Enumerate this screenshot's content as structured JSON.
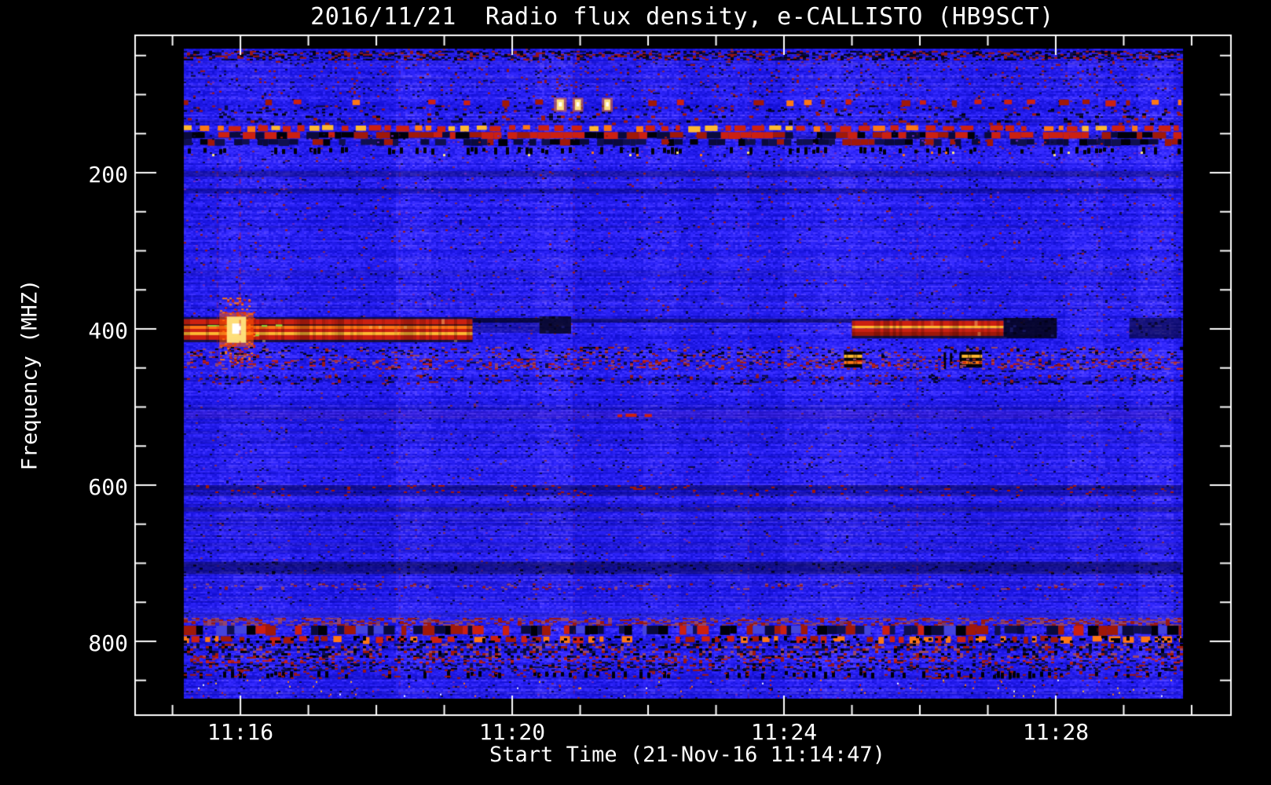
{
  "chart_data": {
    "type": "heatmap",
    "subtype": "radio-spectrogram",
    "title": "2016/11/21  Radio flux density, e-CALLISTO (HB9SCT)",
    "xlabel": "Start Time (21-Nov-16 11:14:47)",
    "ylabel": "Frequency (MHZ)",
    "x_axis": {
      "unit": "time-of-day",
      "start_time": "11:14:47",
      "data_left_offset_sec": 23,
      "data_right_offset_sec": 904,
      "minor_tick_interval_sec": 60,
      "first_minor_offset_sec": 13,
      "last_minor_offset_sec": 913,
      "major_ticks": [
        {
          "label": "11:16",
          "sec": 73
        },
        {
          "label": "11:20",
          "sec": 313
        },
        {
          "label": "11:24",
          "sec": 553
        },
        {
          "label": "11:28",
          "sec": 793
        }
      ]
    },
    "y_axis": {
      "unit": "MHz",
      "top_mhz": 41.2,
      "bottom_mhz": 873.4,
      "minor_step_mhz": 50,
      "minor_min_mhz": 50,
      "minor_max_mhz": 850,
      "major_ticks": [
        {
          "label": "200",
          "mhz": 200
        },
        {
          "label": "400",
          "mhz": 400
        },
        {
          "label": "600",
          "mhz": 600
        },
        {
          "label": "800",
          "mhz": 800
        }
      ]
    },
    "palette": {
      "frame": "#ffffff",
      "bg_blue": "#2620e2",
      "red": "#cc2010",
      "red2": "#a01808",
      "orange": "#ff7714",
      "bright": "#ffb830",
      "yellow": "#ffe680",
      "white": "#ffffff",
      "dark": "#0a0a3c",
      "black": "#000008",
      "navy": "#10104f",
      "navy2": "#1a1040",
      "purple": "#6a28c0",
      "mauve": "#9a4868",
      "green": "#8fd838",
      "blue2": "#4444dd"
    },
    "features": [
      {
        "kind": "speckle",
        "f": [
          44,
          56
        ],
        "d": 0.5,
        "colors": [
          "dark",
          "red2",
          "black"
        ],
        "cw": 4,
        "ch": 2
      },
      {
        "kind": "speckle",
        "f": [
          57,
          103
        ],
        "d": 0.045,
        "colors": [
          "red2",
          "dark"
        ],
        "cw": 3,
        "ch": 2
      },
      {
        "kind": "hdash",
        "f": [
          106,
          114
        ],
        "dash": [
          9,
          26
        ],
        "colors": [
          "red",
          "red2",
          "orange"
        ],
        "d": 0.75
      },
      {
        "kind": "speckle",
        "f": [
          114,
          123
        ],
        "d": 0.14,
        "colors": [
          "red2",
          "dark",
          "black"
        ],
        "cw": 4,
        "ch": 2
      },
      {
        "kind": "glow",
        "t": [
          352,
          359
        ],
        "f": [
          104,
          122
        ],
        "core": "yellow",
        "halo": "orange"
      },
      {
        "kind": "glow",
        "t": [
          368,
          374
        ],
        "f": [
          104,
          122
        ],
        "core": "yellow",
        "halo": "orange"
      },
      {
        "kind": "glow",
        "t": [
          394,
          400
        ],
        "f": [
          104,
          122
        ],
        "core": "yellow",
        "halo": "orange"
      },
      {
        "kind": "speckle",
        "f": [
          124,
          138
        ],
        "d": 0.12,
        "colors": [
          "black",
          "red2",
          "dark"
        ],
        "cw": 5,
        "ch": 3
      },
      {
        "kind": "hdash",
        "f": [
          139,
          147
        ],
        "dash": [
          11,
          7
        ],
        "colors": [
          "red",
          "red",
          "orange",
          "bright"
        ],
        "d": 0.95
      },
      {
        "kind": "blocks",
        "f": [
          148,
          157
        ],
        "bw": [
          7,
          18
        ],
        "colors": [
          "red",
          "black",
          "red",
          "dark",
          "red2"
        ],
        "skip": 0.15
      },
      {
        "kind": "blocks",
        "f": [
          157,
          166
        ],
        "bw": [
          6,
          14
        ],
        "colors": [
          "dark",
          "black",
          "navy",
          "red2",
          "dark",
          "navy"
        ],
        "skip": 0.3
      },
      {
        "kind": "vdashes",
        "f": [
          167,
          177
        ],
        "d": 0.3,
        "color": "black",
        "w": 4
      },
      {
        "kind": "dots",
        "f": [
          173,
          177
        ],
        "d": 0.02,
        "colors": [
          "yellow",
          "orange"
        ],
        "cw": 3,
        "ch": 3
      },
      {
        "kind": "stripe",
        "f": [
          198,
          205
        ],
        "color": "#000030",
        "alpha": 0.35
      },
      {
        "kind": "stripe",
        "f": [
          220,
          227
        ],
        "color": "#000030",
        "alpha": 0.25
      },
      {
        "kind": "speckle",
        "f": [
          150,
          380
        ],
        "d": 0.011,
        "colors": [
          "red2",
          "dark",
          "purple"
        ],
        "cw": 3,
        "ch": 2
      },
      {
        "kind": "stripes",
        "t": [
          23,
          278
        ],
        "jitter": 0.5,
        "list": [
          [
            385,
            387.5,
            "navy"
          ],
          [
            387.5,
            394,
            "red"
          ],
          [
            394,
            396,
            "#551515"
          ],
          [
            396,
            400,
            "orange"
          ],
          [
            400,
            404,
            "red"
          ],
          [
            404,
            408,
            "bright"
          ],
          [
            408,
            414,
            "red"
          ],
          [
            414,
            417,
            "navy2"
          ]
        ]
      },
      {
        "kind": "hdash",
        "t": [
          23,
          110
        ],
        "f": [
          394,
          396.5
        ],
        "dash": [
          10,
          12
        ],
        "colors": [
          "green"
        ],
        "d": 0.7
      },
      {
        "kind": "hdash",
        "t": [
          40,
          120
        ],
        "f": [
          407,
          409.5
        ],
        "dash": [
          8,
          14
        ],
        "colors": [
          "green"
        ],
        "d": 0.6
      },
      {
        "kind": "speckle",
        "t": [
          55,
          85
        ],
        "f": [
          360,
          445
        ],
        "d": 0.28,
        "colors": [
          "red",
          "orange"
        ],
        "cw": 3,
        "ch": 2
      },
      {
        "kind": "glow",
        "t": [
          60,
          79
        ],
        "f": [
          379,
          423
        ],
        "core": "yellow",
        "halo": "#ff5500"
      },
      {
        "kind": "stripe",
        "t": [
          278,
          337
        ],
        "f": [
          386,
          392
        ],
        "color": "#00001c",
        "alpha": 0.8
      },
      {
        "kind": "stripe",
        "t": [
          278,
          337
        ],
        "f": [
          392,
          405
        ],
        "color": "#000030",
        "alpha": 0.3
      },
      {
        "kind": "rect",
        "t": [
          337,
          365
        ],
        "f": [
          384,
          406
        ],
        "color": "#050518",
        "alpha": 0.85,
        "tex": 0.3
      },
      {
        "kind": "stripe",
        "t": [
          365,
          613
        ],
        "f": [
          387,
          392
        ],
        "color": "#000022",
        "alpha": 0.55
      },
      {
        "kind": "stripes",
        "t": [
          613,
          747
        ],
        "jitter": 0.4,
        "list": [
          [
            387,
            389.5,
            "navy"
          ],
          [
            389.5,
            396,
            "red"
          ],
          [
            396,
            399.5,
            "bright"
          ],
          [
            399.5,
            404,
            "red"
          ],
          [
            404,
            409,
            "red2"
          ],
          [
            409,
            412,
            "navy2"
          ]
        ]
      },
      {
        "kind": "rect",
        "t": [
          747,
          794
        ],
        "f": [
          386,
          412
        ],
        "color": "#020210",
        "alpha": 0.85,
        "tex": 0.35
      },
      {
        "kind": "rect",
        "t": [
          858,
          904
        ],
        "f": [
          386,
          412
        ],
        "color": "#06062a",
        "alpha": 0.6,
        "tex": 0.3
      },
      {
        "kind": "speckle",
        "f": [
          423,
          436
        ],
        "d": 0.2,
        "colors": [
          "dark",
          "red2",
          "black",
          "mauve"
        ],
        "cw": 4,
        "ch": 2
      },
      {
        "kind": "ladder",
        "t": [
          606,
          622
        ],
        "f": [
          429,
          449
        ],
        "stripes": [
          "black",
          "bright",
          "black",
          "orange",
          "black"
        ]
      },
      {
        "kind": "ladder",
        "t": [
          709,
          728
        ],
        "f": [
          429,
          449
        ],
        "stripes": [
          "black",
          "bright",
          "black",
          "orange",
          "black"
        ]
      },
      {
        "kind": "vdashes",
        "t": [
          694,
          709
        ],
        "f": [
          429,
          452
        ],
        "d": 0.5,
        "color": "black",
        "w": 3
      },
      {
        "kind": "speckle",
        "f": [
          438,
          452
        ],
        "d": 0.28,
        "colors": [
          "mauve",
          "red2",
          "dark",
          "red"
        ],
        "cw": 4,
        "ch": 2
      },
      {
        "kind": "speckle",
        "f": [
          459,
          470
        ],
        "d": 0.18,
        "colors": [
          "black",
          "red2",
          "dark"
        ],
        "cw": 4,
        "ch": 2
      },
      {
        "kind": "stripe",
        "f": [
          505,
          514
        ],
        "color": "#5a2090",
        "alpha": 0.22
      },
      {
        "kind": "hdash",
        "t": [
          406,
          442
        ],
        "f": [
          508,
          512.5
        ],
        "dash": [
          10,
          9
        ],
        "colors": [
          "red",
          "orange"
        ],
        "d": 0.9
      },
      {
        "kind": "stripe",
        "f": [
          600,
          607
        ],
        "color": "#000030",
        "alpha": 0.4
      },
      {
        "kind": "stripe",
        "f": [
          608,
          614
        ],
        "color": "#000030",
        "alpha": 0.3
      },
      {
        "kind": "speckle",
        "f": [
          600,
          614
        ],
        "d": 0.05,
        "colors": [
          "red2"
        ],
        "cw": 4,
        "ch": 2
      },
      {
        "kind": "stripe",
        "f": [
          628,
          634
        ],
        "color": "#000030",
        "alpha": 0.4
      },
      {
        "kind": "stripe",
        "f": [
          698,
          714
        ],
        "color": "#000028",
        "alpha": 0.45
      },
      {
        "kind": "speckle",
        "f": [
          698,
          714
        ],
        "d": 0.05,
        "colors": [
          "dark",
          "black"
        ],
        "cw": 4,
        "ch": 2
      },
      {
        "kind": "speckle",
        "f": [
          726,
          733
        ],
        "d": 0.1,
        "colors": [
          "red2",
          "mauve"
        ],
        "cw": 4,
        "ch": 2
      },
      {
        "kind": "stripe",
        "f": [
          757,
          770
        ],
        "color": "#4040ff",
        "alpha": 0.22
      },
      {
        "kind": "speckle",
        "f": [
          770,
          780
        ],
        "d": 0.5,
        "colors": [
          "mauve",
          "red2",
          "#7a3a6a"
        ],
        "cw": 5,
        "ch": 2
      },
      {
        "kind": "blocks",
        "f": [
          780,
          793
        ],
        "bw": [
          5,
          16
        ],
        "colors": [
          "black",
          "red",
          "dark",
          "red2",
          "navy",
          "blue2"
        ],
        "skip": 0.2
      },
      {
        "kind": "hdash",
        "f": [
          793,
          802
        ],
        "dash": [
          10,
          6
        ],
        "colors": [
          "red",
          "red2",
          "orange"
        ],
        "d": 0.8
      },
      {
        "kind": "speckle",
        "f": [
          793,
          802
        ],
        "d": 0.15,
        "colors": [
          "black"
        ],
        "cw": 4,
        "ch": 3
      },
      {
        "kind": "speckle",
        "f": [
          803,
          820
        ],
        "d": 0.4,
        "colors": [
          "black",
          "dark",
          "red2",
          "navy",
          "mauve"
        ],
        "cw": 4,
        "ch": 3
      },
      {
        "kind": "speckle",
        "f": [
          820,
          828
        ],
        "d": 0.3,
        "colors": [
          "red2",
          "red",
          "dark"
        ],
        "cw": 4,
        "ch": 2
      },
      {
        "kind": "speckle",
        "f": [
          828,
          838
        ],
        "d": 0.35,
        "colors": [
          "dark",
          "black",
          "red2",
          "navy"
        ],
        "cw": 4,
        "ch": 2
      },
      {
        "kind": "vdashes",
        "f": [
          838,
          848
        ],
        "d": 0.3,
        "color": "black",
        "w": 4
      },
      {
        "kind": "speckle",
        "f": [
          838,
          848
        ],
        "d": 0.08,
        "colors": [
          "red2"
        ],
        "cw": 4,
        "ch": 2
      },
      {
        "kind": "dots",
        "f": [
          849,
          871
        ],
        "d": 0.012,
        "colors": [
          "orange",
          "bright",
          "white",
          "red"
        ],
        "cw": 2,
        "ch": 2
      },
      {
        "kind": "vline",
        "t": 52,
        "f": [
          190,
          460
        ],
        "color": "red",
        "alpha": 0.3,
        "dash": [
          5,
          7
        ]
      },
      {
        "kind": "vline",
        "t": 72,
        "f": [
          180,
          470
        ],
        "color": "red",
        "alpha": 0.45,
        "dash": [
          5,
          6
        ]
      },
      {
        "kind": "vline",
        "t": 213,
        "f": [
          44,
          870
        ],
        "color": "red",
        "alpha": 0.22,
        "dash": [
          4,
          8
        ]
      },
      {
        "kind": "vline",
        "t": 367,
        "f": [
          44,
          870
        ],
        "color": "red",
        "alpha": 0.22,
        "dash": [
          4,
          8
        ]
      },
      {
        "kind": "vline",
        "t": 521,
        "f": [
          44,
          870
        ],
        "color": "red",
        "alpha": 0.22,
        "dash": [
          4,
          8
        ]
      },
      {
        "kind": "vline",
        "t": 670,
        "f": [
          44,
          870
        ],
        "color": "red",
        "alpha": 0.3,
        "dash": [
          4,
          7
        ]
      },
      {
        "kind": "vline",
        "t": 829,
        "f": [
          44,
          870
        ],
        "color": "red",
        "alpha": 0.22,
        "dash": [
          4,
          8
        ]
      }
    ]
  }
}
